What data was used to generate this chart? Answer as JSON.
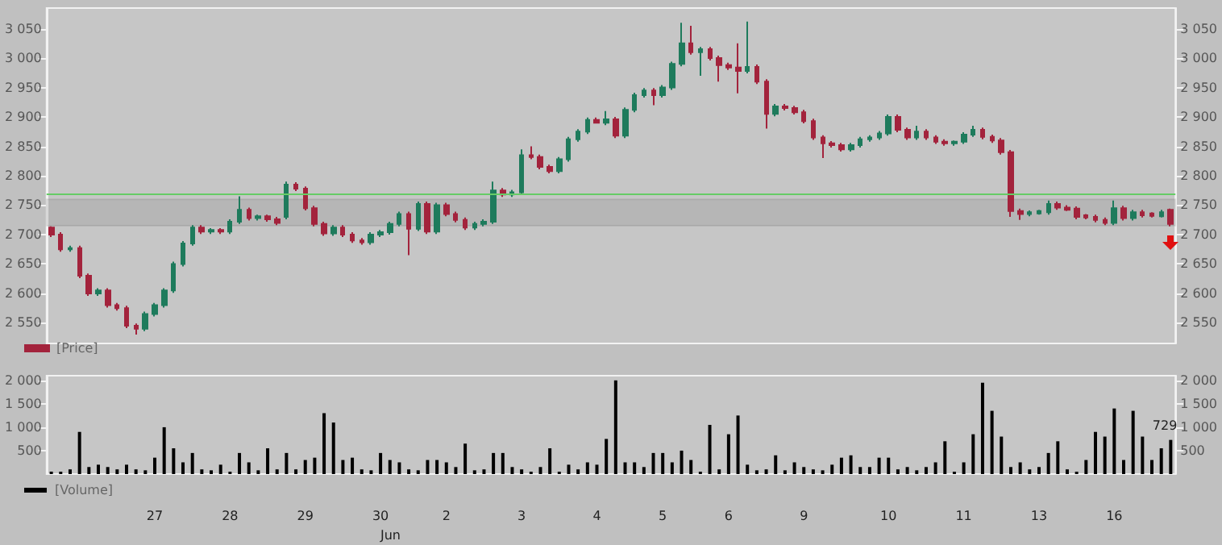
{
  "chart_data": [
    {
      "type": "candlestick",
      "legend": "bottom left",
      "tick_labels": "y",
      "categories": [
        null,
        null,
        null,
        null,
        null,
        null,
        null,
        null,
        null,
        null,
        null,
        "27",
        null,
        null,
        null,
        null,
        null,
        null,
        null,
        "28",
        null,
        null,
        null,
        null,
        null,
        null,
        null,
        "29",
        null,
        null,
        null,
        null,
        null,
        null,
        null,
        "30",
        null,
        null,
        null,
        null,
        null,
        null,
        "2",
        null,
        null,
        null,
        null,
        null,
        null,
        null,
        "3",
        null,
        null,
        null,
        null,
        null,
        null,
        null,
        "4",
        null,
        null,
        null,
        null,
        null,
        null,
        "5",
        null,
        null,
        null,
        null,
        null,
        null,
        "6",
        null,
        null,
        null,
        null,
        null,
        null,
        null,
        "9",
        null,
        null,
        null,
        null,
        null,
        null,
        null,
        null,
        "10",
        null,
        null,
        null,
        null,
        null,
        null,
        null,
        "11",
        null,
        null,
        null,
        null,
        null,
        null,
        null,
        "13",
        null,
        null,
        null,
        null,
        null,
        null,
        null,
        "16",
        null,
        null,
        null,
        null,
        null,
        null
      ],
      "series": [
        {
          "name": "[Price]",
          "colors": [
            "#a3233c",
            "#a3233c",
            "#1e7b5c",
            "#a3233c",
            "#a3233c",
            "#1e7b5c",
            "#a3233c",
            "#a3233c",
            "#a3233c",
            "#a3233c",
            "#1e7b5c",
            "#1e7b5c",
            "#1e7b5c",
            "#1e7b5c",
            "#1e7b5c",
            "#1e7b5c",
            "#a3233c",
            "#1e7b5c",
            "#a3233c",
            "#1e7b5c",
            "#1e7b5c",
            "#a3233c",
            "#1e7b5c",
            "#a3233c",
            "#a3233c",
            "#1e7b5c",
            "#a3233c",
            "#a3233c",
            "#a3233c",
            "#a3233c",
            "#1e7b5c",
            "#a3233c",
            "#a3233c",
            "#a3233c",
            "#1e7b5c",
            "#1e7b5c",
            "#1e7b5c",
            "#1e7b5c",
            "#a3233c",
            "#1e7b5c",
            "#a3233c",
            "#1e7b5c",
            "#a3233c",
            "#a3233c",
            "#a3233c",
            "#1e7b5c",
            "#1e7b5c",
            "#1e7b5c",
            "#a3233c",
            "#1e7b5c",
            "#1e7b5c",
            "#a3233c",
            "#a3233c",
            "#a3233c",
            "#1e7b5c",
            "#1e7b5c",
            "#1e7b5c",
            "#1e7b5c",
            "#a3233c",
            "#1e7b5c",
            "#a3233c",
            "#1e7b5c",
            "#1e7b5c",
            "#1e7b5c",
            "#a3233c",
            "#1e7b5c",
            "#1e7b5c",
            "#1e7b5c",
            "#a3233c",
            "#1e7b5c",
            "#a3233c",
            "#a3233c",
            "#a3233c",
            "#a3233c",
            "#1e7b5c",
            "#a3233c",
            "#a3233c",
            "#1e7b5c",
            "#a3233c",
            "#a3233c",
            "#a3233c",
            "#a3233c",
            "#a3233c",
            "#a3233c",
            "#a3233c",
            "#1e7b5c",
            "#1e7b5c",
            "#1e7b5c",
            "#1e7b5c",
            "#1e7b5c",
            "#a3233c",
            "#a3233c",
            "#1e7b5c",
            "#a3233c",
            "#a3233c",
            "#a3233c",
            "#1e7b5c",
            "#1e7b5c",
            "#1e7b5c",
            "#a3233c",
            "#a3233c",
            "#a3233c",
            "#a3233c",
            "#a3233c",
            "#1e7b5c",
            "#1e7b5c",
            "#1e7b5c",
            "#a3233c",
            "#a3233c",
            "#a3233c",
            "#a3233c",
            "#a3233c",
            "#a3233c",
            "#1e7b5c",
            "#a3233c",
            "#1e7b5c",
            "#a3233c",
            "#a3233c",
            "#1e7b5c",
            "#a3233c"
          ],
          "ohlc": [
            [
              2712,
              2714,
              2696,
              2700
            ],
            [
              2700,
              2704,
              2671,
              2675
            ],
            [
              2675,
              2681,
              2671,
              2677
            ],
            [
              2677,
              2681,
              2626,
              2630
            ],
            [
              2630,
              2634,
              2596,
              2600
            ],
            [
              2600,
              2609,
              2596,
              2605
            ],
            [
              2605,
              2609,
              2576,
              2580
            ],
            [
              2580,
              2584,
              2571,
              2575
            ],
            [
              2575,
              2579,
              2541,
              2545
            ],
            [
              2545,
              2549,
              2530,
              2540
            ],
            [
              2540,
              2569,
              2536,
              2565
            ],
            [
              2565,
              2584,
              2561,
              2580
            ],
            [
              2580,
              2609,
              2576,
              2605
            ],
            [
              2605,
              2654,
              2601,
              2650
            ],
            [
              2650,
              2689,
              2646,
              2685
            ],
            [
              2685,
              2716,
              2681,
              2712
            ],
            [
              2712,
              2716,
              2701,
              2705
            ],
            [
              2705,
              2711,
              2701,
              2708
            ],
            [
              2708,
              2711,
              2701,
              2705
            ],
            [
              2705,
              2726,
              2701,
              2722
            ],
            [
              2722,
              2765,
              2718,
              2742
            ],
            [
              2742,
              2746,
              2724,
              2728
            ],
            [
              2728,
              2734,
              2724,
              2731
            ],
            [
              2731,
              2734,
              2722,
              2726
            ],
            [
              2726,
              2730,
              2716,
              2720
            ],
            [
              2730,
              2790,
              2726,
              2785
            ],
            [
              2785,
              2789,
              2774,
              2778
            ],
            [
              2778,
              2782,
              2741,
              2745
            ],
            [
              2745,
              2749,
              2714,
              2718
            ],
            [
              2718,
              2722,
              2698,
              2702
            ],
            [
              2702,
              2716,
              2698,
              2712
            ],
            [
              2712,
              2716,
              2696,
              2700
            ],
            [
              2700,
              2704,
              2686,
              2690
            ],
            [
              2690,
              2694,
              2683,
              2687
            ],
            [
              2687,
              2704,
              2683,
              2700
            ],
            [
              2700,
              2708,
              2696,
              2704
            ],
            [
              2704,
              2722,
              2700,
              2718
            ],
            [
              2718,
              2739,
              2714,
              2735
            ],
            [
              2735,
              2739,
              2665,
              2710
            ],
            [
              2710,
              2756,
              2706,
              2752
            ],
            [
              2752,
              2756,
              2701,
              2705
            ],
            [
              2705,
              2754,
              2701,
              2750
            ],
            [
              2750,
              2754,
              2731,
              2735
            ],
            [
              2735,
              2739,
              2721,
              2725
            ],
            [
              2725,
              2729,
              2708,
              2712
            ],
            [
              2712,
              2722,
              2708,
              2718
            ],
            [
              2718,
              2726,
              2714,
              2722
            ],
            [
              2722,
              2790,
              2718,
              2775
            ],
            [
              2775,
              2779,
              2764,
              2768
            ],
            [
              2768,
              2776,
              2764,
              2772
            ],
            [
              2772,
              2845,
              2768,
              2835
            ],
            [
              2835,
              2850,
              2828,
              2832
            ],
            [
              2832,
              2836,
              2811,
              2815
            ],
            [
              2815,
              2819,
              2804,
              2808
            ],
            [
              2808,
              2832,
              2804,
              2828
            ],
            [
              2828,
              2866,
              2824,
              2862
            ],
            [
              2862,
              2879,
              2858,
              2875
            ],
            [
              2875,
              2899,
              2871,
              2895
            ],
            [
              2895,
              2899,
              2889,
              2890
            ],
            [
              2890,
              2910,
              2886,
              2896
            ],
            [
              2896,
              2900,
              2864,
              2868
            ],
            [
              2868,
              2916,
              2864,
              2912
            ],
            [
              2912,
              2941,
              2908,
              2937
            ],
            [
              2937,
              2949,
              2933,
              2945
            ],
            [
              2945,
              2949,
              2920,
              2937
            ],
            [
              2937,
              2954,
              2933,
              2950
            ],
            [
              2950,
              2994,
              2946,
              2990
            ],
            [
              2990,
              3060,
              2986,
              3025
            ],
            [
              3025,
              3055,
              3006,
              3010
            ],
            [
              3010,
              3019,
              2970,
              3015
            ],
            [
              3015,
              3019,
              2996,
              3000
            ],
            [
              3000,
              3004,
              2960,
              2988
            ],
            [
              2988,
              2992,
              2980,
              2984
            ],
            [
              2984,
              3025,
              2940,
              2978
            ],
            [
              2978,
              3062,
              2974,
              2985
            ],
            [
              2985,
              2989,
              2956,
              2960
            ],
            [
              2960,
              2964,
              2880,
              2905
            ],
            [
              2905,
              2922,
              2901,
              2918
            ],
            [
              2918,
              2922,
              2911,
              2915
            ],
            [
              2915,
              2919,
              2904,
              2908
            ],
            [
              2908,
              2912,
              2889,
              2893
            ],
            [
              2893,
              2897,
              2861,
              2865
            ],
            [
              2865,
              2869,
              2830,
              2855
            ],
            [
              2855,
              2859,
              2848,
              2852
            ],
            [
              2852,
              2856,
              2841,
              2845
            ],
            [
              2845,
              2856,
              2841,
              2852
            ],
            [
              2852,
              2866,
              2848,
              2862
            ],
            [
              2862,
              2869,
              2858,
              2865
            ],
            [
              2865,
              2876,
              2861,
              2872
            ],
            [
              2872,
              2904,
              2868,
              2900
            ],
            [
              2900,
              2904,
              2874,
              2878
            ],
            [
              2878,
              2882,
              2861,
              2865
            ],
            [
              2865,
              2885,
              2861,
              2875
            ],
            [
              2875,
              2879,
              2861,
              2865
            ],
            [
              2865,
              2869,
              2854,
              2858
            ],
            [
              2858,
              2862,
              2851,
              2855
            ],
            [
              2855,
              2860,
              2851,
              2858
            ],
            [
              2858,
              2874,
              2854,
              2870
            ],
            [
              2870,
              2885,
              2866,
              2878
            ],
            [
              2878,
              2882,
              2862,
              2866
            ],
            [
              2866,
              2870,
              2856,
              2860
            ],
            [
              2860,
              2864,
              2836,
              2840
            ],
            [
              2840,
              2844,
              2730,
              2740
            ],
            [
              2740,
              2744,
              2725,
              2735
            ],
            [
              2735,
              2741,
              2731,
              2738
            ],
            [
              2736,
              2742,
              2734,
              2740
            ],
            [
              2738,
              2758,
              2734,
              2752
            ],
            [
              2752,
              2756,
              2742,
              2746
            ],
            [
              2746,
              2750,
              2740,
              2742
            ],
            [
              2744,
              2748,
              2726,
              2730
            ],
            [
              2733,
              2735,
              2726,
              2729
            ],
            [
              2730,
              2734,
              2721,
              2725
            ],
            [
              2725,
              2729,
              2716,
              2720
            ],
            [
              2720,
              2758,
              2716,
              2745
            ],
            [
              2745,
              2749,
              2724,
              2728
            ],
            [
              2728,
              2742,
              2724,
              2738
            ],
            [
              2738,
              2742,
              2729,
              2733
            ],
            [
              2736,
              2738,
              2729,
              2732
            ],
            [
              2731,
              2742,
              2729,
              2738
            ],
            [
              2742,
              2744,
              2714,
              2718
            ]
          ]
        }
      ],
      "ylim": [
        2515,
        3085
      ],
      "yticks": [
        {
          "value": 2550,
          "label": "2 550"
        },
        {
          "value": 2600,
          "label": "2 600"
        },
        {
          "value": 2650,
          "label": "2 650"
        },
        {
          "value": 2700,
          "label": "2 700"
        },
        {
          "value": 2750,
          "label": "2 750"
        },
        {
          "value": 2800,
          "label": "2 800"
        },
        {
          "value": 2850,
          "label": "2 850"
        },
        {
          "value": 2900,
          "label": "2 900"
        },
        {
          "value": 2950,
          "label": "2 950"
        },
        {
          "value": 3000,
          "label": "3 000"
        },
        {
          "value": 3050,
          "label": "3 050"
        }
      ],
      "y2lim": [
        2515,
        3085
      ],
      "y2ticks": [
        {
          "value": 2550,
          "label": "2 550"
        },
        {
          "value": 2600,
          "label": "2 600"
        },
        {
          "value": 2650,
          "label": "2 650"
        },
        {
          "value": 2700,
          "label": "2 700"
        },
        {
          "value": 2750,
          "label": "2 750"
        },
        {
          "value": 2800,
          "label": "2 800"
        },
        {
          "value": 2850,
          "label": "2 850"
        },
        {
          "value": 2900,
          "label": "2 900"
        },
        {
          "value": 2950,
          "label": "2 950"
        },
        {
          "value": 3000,
          "label": "3 000"
        },
        {
          "value": 3050,
          "label": "3 050"
        }
      ],
      "ref_lines": [
        {
          "axis": "y",
          "value": 2770,
          "color": "#66cc66"
        }
      ],
      "bands": [
        {
          "axis": "y",
          "from": 2715,
          "to": 2760,
          "color": "#000000"
        }
      ]
    },
    {
      "type": "bar",
      "legend": "bottom left",
      "categories": [
        null,
        null,
        null,
        null,
        null,
        null,
        null,
        null,
        null,
        null,
        null,
        "27",
        null,
        null,
        null,
        null,
        null,
        null,
        null,
        "28",
        null,
        null,
        null,
        null,
        null,
        null,
        null,
        "29",
        null,
        null,
        null,
        null,
        null,
        null,
        null,
        "30",
        null,
        null,
        null,
        null,
        null,
        null,
        "2",
        null,
        null,
        null,
        null,
        null,
        null,
        null,
        "3",
        null,
        null,
        null,
        null,
        null,
        null,
        null,
        "4",
        null,
        null,
        null,
        null,
        null,
        null,
        "5",
        null,
        null,
        null,
        null,
        null,
        null,
        "6",
        null,
        null,
        null,
        null,
        null,
        null,
        null,
        "9",
        null,
        null,
        null,
        null,
        null,
        null,
        null,
        null,
        "10",
        null,
        null,
        null,
        null,
        null,
        null,
        null,
        "11",
        null,
        null,
        null,
        null,
        null,
        null,
        null,
        "13",
        null,
        null,
        null,
        null,
        null,
        null,
        null,
        "16",
        null,
        null,
        null,
        null,
        null,
        null
      ],
      "series": [
        {
          "name": "[Volume]",
          "color": "#000000",
          "values": [
            50,
            50,
            100,
            900,
            150,
            200,
            150,
            100,
            200,
            100,
            80,
            350,
            1000,
            550,
            250,
            450,
            100,
            80,
            200,
            50,
            450,
            250,
            80,
            550,
            100,
            450,
            100,
            300,
            350,
            1300,
            1100,
            300,
            350,
            100,
            80,
            450,
            300,
            250,
            100,
            80,
            300,
            300,
            250,
            150,
            650,
            80,
            100,
            450,
            450,
            150,
            100,
            50,
            150,
            550,
            50,
            200,
            100,
            250,
            200,
            750,
            2000,
            250,
            250,
            150,
            450,
            450,
            250,
            500,
            300,
            50,
            1050,
            100,
            850,
            1250,
            200,
            80,
            100,
            400,
            80,
            250,
            150,
            100,
            80,
            200,
            350,
            400,
            150,
            150,
            350,
            350,
            100,
            150,
            80,
            150,
            250,
            700,
            50,
            250,
            850,
            1950,
            1350,
            800,
            150,
            250,
            100,
            150,
            450,
            700,
            100,
            50,
            300,
            900,
            800,
            1400,
            300,
            1350,
            800,
            300,
            550,
            729
          ],
          "value_labels": [
            null,
            null,
            null,
            null,
            null,
            null,
            null,
            null,
            null,
            null,
            null,
            null,
            null,
            null,
            null,
            null,
            null,
            null,
            null,
            null,
            null,
            null,
            null,
            null,
            null,
            null,
            null,
            null,
            null,
            null,
            null,
            null,
            null,
            null,
            null,
            null,
            null,
            null,
            null,
            null,
            null,
            null,
            null,
            null,
            null,
            null,
            null,
            null,
            null,
            null,
            null,
            null,
            null,
            null,
            null,
            null,
            null,
            null,
            null,
            null,
            null,
            null,
            null,
            null,
            null,
            null,
            null,
            null,
            null,
            null,
            null,
            null,
            null,
            null,
            null,
            null,
            null,
            null,
            null,
            null,
            null,
            null,
            null,
            null,
            null,
            null,
            null,
            null,
            null,
            null,
            null,
            null,
            null,
            null,
            null,
            null,
            null,
            null,
            null,
            null,
            null,
            null,
            null,
            null,
            null,
            null,
            null,
            null,
            null,
            null,
            null,
            null,
            null,
            null,
            null,
            null,
            null,
            null,
            null,
            "729"
          ]
        }
      ],
      "ylim": [
        0,
        2100
      ],
      "yticks": [
        500,
        {
          "value": 1000,
          "label": "1 000"
        },
        {
          "value": 1500,
          "label": "1 500"
        },
        {
          "value": 2000,
          "label": "2 000"
        }
      ],
      "y2lim": [
        0,
        2100
      ],
      "y2ticks": [
        500,
        {
          "value": 1000,
          "label": "1 000"
        },
        {
          "value": 1500,
          "label": "1 500"
        },
        {
          "value": 2000,
          "label": "2 000"
        }
      ],
      "annotations": [
        "Jun"
      ]
    }
  ]
}
